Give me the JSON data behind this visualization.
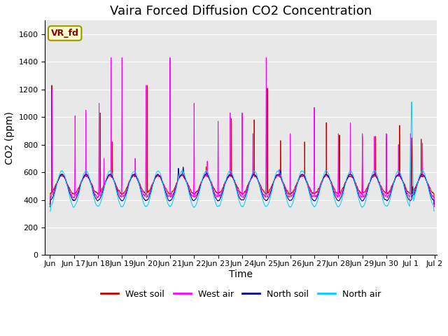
{
  "title": "Vaira Forced Diffusion CO2 Concentration",
  "xlabel": "Time",
  "ylabel": "CO2 (ppm)",
  "ylim": [
    0,
    1700
  ],
  "yticks": [
    0,
    200,
    400,
    600,
    800,
    1000,
    1200,
    1400,
    1600
  ],
  "legend_label": "VR_fd",
  "series": {
    "west_soil": {
      "color": "#cc0000",
      "label": "West soil"
    },
    "west_air": {
      "color": "#ff00ff",
      "label": "West air"
    },
    "north_soil": {
      "color": "#000099",
      "label": "North soil"
    },
    "north_air": {
      "color": "#00ccff",
      "label": "North air"
    }
  },
  "background_color": "#e8e8e8",
  "grid_color": "#ffffff",
  "title_fontsize": 13,
  "axis_fontsize": 10,
  "tick_fontsize": 8,
  "legend_box_color": "#ffffcc",
  "legend_box_edge": "#999900",
  "n_days": 16,
  "pts_per_day": 288,
  "start_day": 17,
  "x_tick_labels": [
    "Jun 17",
    "Jun 18",
    "Jun 19",
    "Jun 20",
    "Jun 21",
    "Jun 22",
    "Jun 23",
    "Jun 24",
    "Jun 25",
    "Jun 26",
    "Jun 27",
    "Jun 28",
    "Jun 29",
    "Jun 30",
    "Jul 1",
    "Jul 2"
  ],
  "x_left_label": "Jun"
}
